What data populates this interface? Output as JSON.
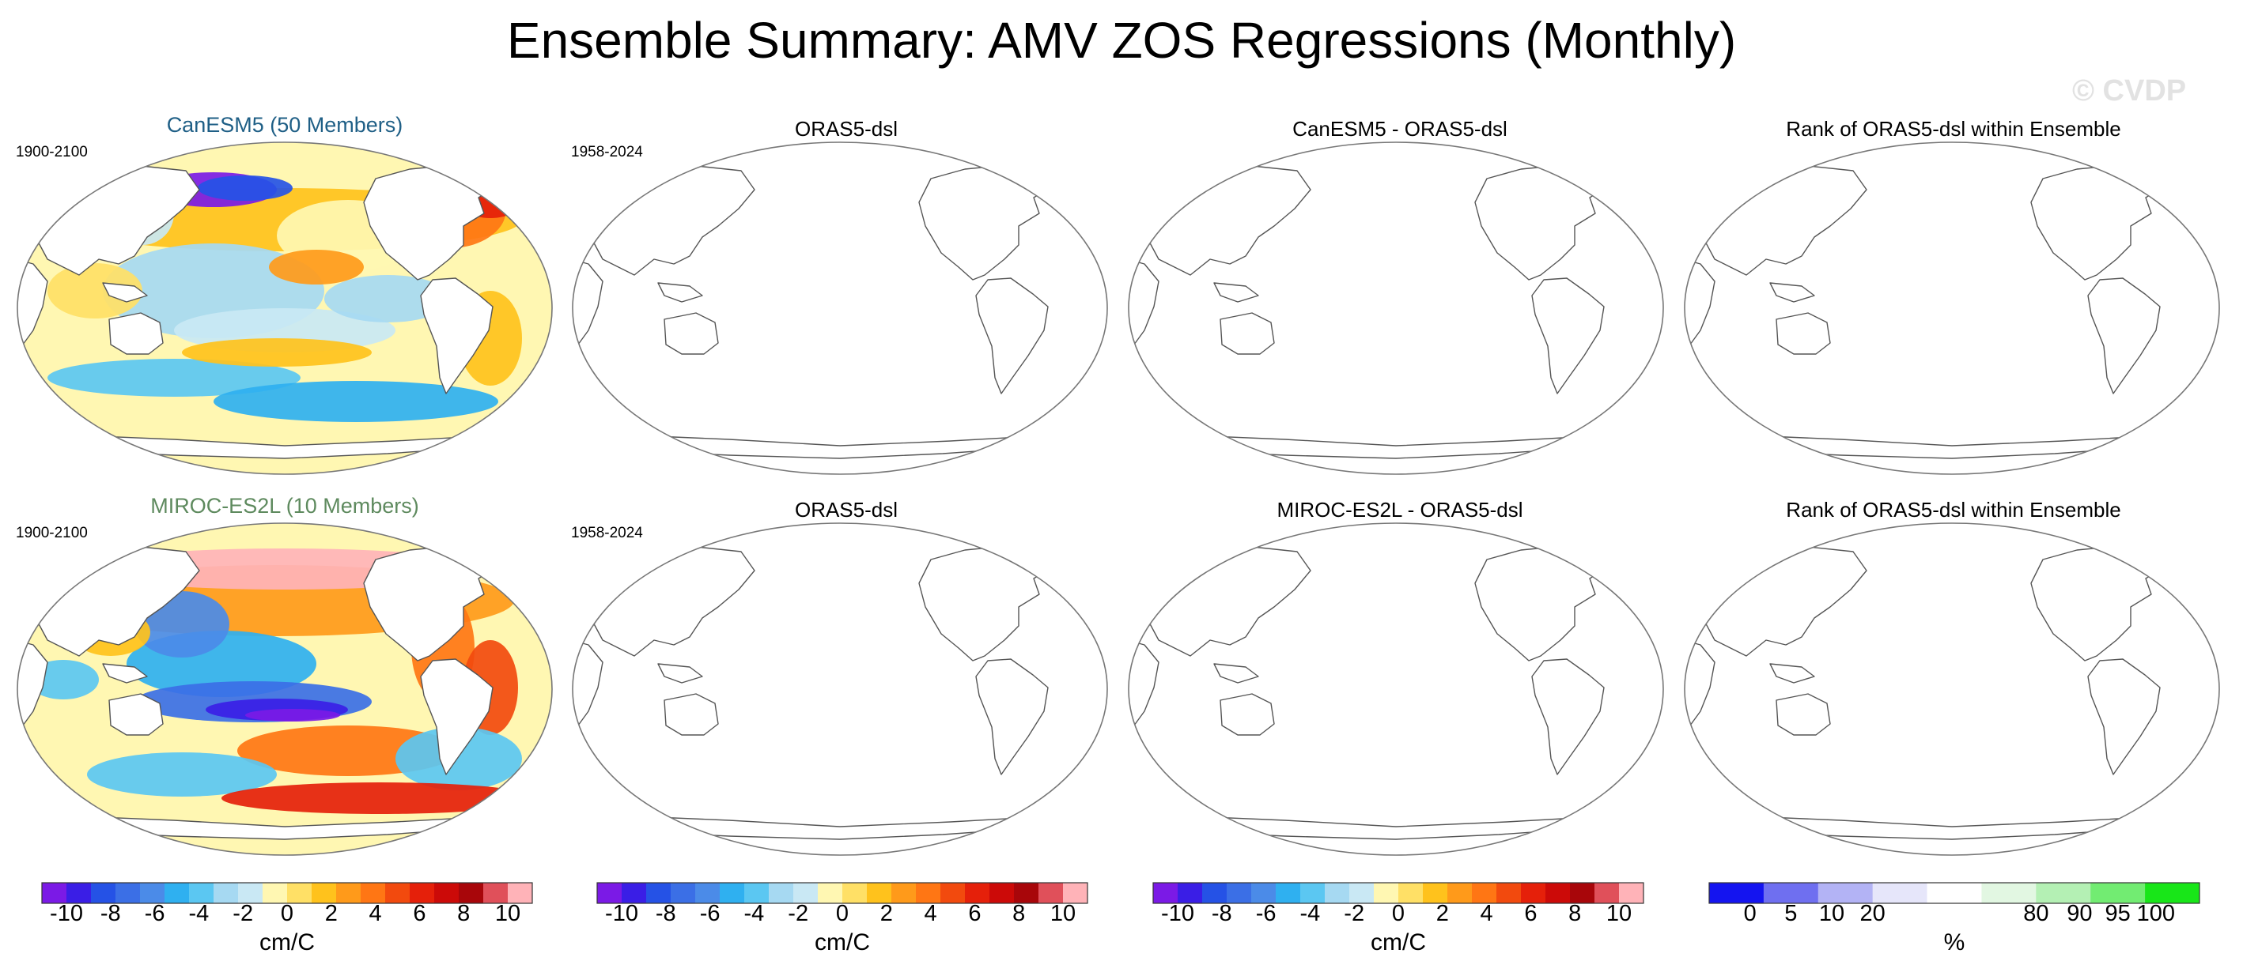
{
  "figure": {
    "title": "Ensemble Summary: AMV ZOS Regressions (Monthly)",
    "watermark": "© CVDP"
  },
  "rows": [
    {
      "model_title": "CanESM5 (50 Members)",
      "model_color": "#1f5f86",
      "model_years": "1900-2100",
      "obs_title": "ORAS5-dsl",
      "obs_years": "1958-2024",
      "diff_title": "CanESM5 - ORAS5-dsl",
      "rank_title": "Rank of ORAS5-dsl within Ensemble"
    },
    {
      "model_title": "MIROC-ES2L (10 Members)",
      "model_color": "#5e8a5e",
      "model_years": "1900-2100",
      "obs_title": "ORAS5-dsl",
      "obs_years": "1958-2024",
      "diff_title": "MIROC-ES2L - ORAS5-dsl",
      "rank_title": "Rank of ORAS5-dsl within Ensemble"
    }
  ],
  "colorbars": {
    "regression": {
      "ticks": [
        "-10",
        "-8",
        "-6",
        "-4",
        "-2",
        "0",
        "2",
        "4",
        "6",
        "8",
        "10"
      ],
      "unit": "cm/C",
      "colors": [
        "#7b1ae6",
        "#3a1ee6",
        "#2552e6",
        "#3b6fe6",
        "#4b8be8",
        "#2fb0f0",
        "#5bc7f2",
        "#a6d9f2",
        "#c9e8f4",
        "#fff7b2",
        "#ffe066",
        "#ffc21c",
        "#ff9a1a",
        "#ff7614",
        "#f24a0e",
        "#e5200a",
        "#cc0a08",
        "#a8060a",
        "#e0505a",
        "#ffb3b8"
      ]
    },
    "rank": {
      "ticks": [
        "0",
        "5",
        "10",
        "20",
        "80",
        "90",
        "95",
        "100"
      ],
      "unit": "%",
      "colors": [
        "#1414f0",
        "#6f6ff0",
        "#b3b3f5",
        "#e6e6fa",
        "#ffffff",
        "#e2f7e2",
        "#b4f0b4",
        "#72ec72",
        "#18e618"
      ]
    }
  }
}
